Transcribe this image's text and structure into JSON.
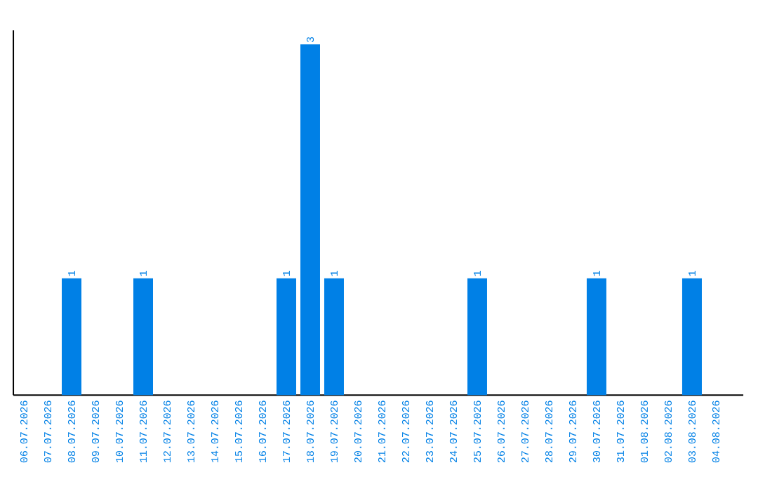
{
  "chart_data": {
    "type": "bar",
    "categories": [
      "06.07.2026",
      "07.07.2026",
      "08.07.2026",
      "09.07.2026",
      "10.07.2026",
      "11.07.2026",
      "12.07.2026",
      "13.07.2026",
      "14.07.2026",
      "15.07.2026",
      "16.07.2026",
      "17.07.2026",
      "18.07.2026",
      "19.07.2026",
      "20.07.2026",
      "21.07.2026",
      "22.07.2026",
      "23.07.2026",
      "24.07.2026",
      "25.07.2026",
      "26.07.2026",
      "27.07.2026",
      "28.07.2026",
      "29.07.2026",
      "30.07.2026",
      "31.07.2026",
      "01.08.2026",
      "02.08.2026",
      "03.08.2026",
      "04.08.2026"
    ],
    "values": [
      0,
      0,
      1,
      0,
      0,
      1,
      0,
      0,
      0,
      0,
      0,
      1,
      3,
      1,
      0,
      0,
      0,
      0,
      0,
      1,
      0,
      0,
      0,
      0,
      1,
      0,
      0,
      0,
      1,
      0
    ],
    "value_labels": [
      null,
      null,
      "1",
      null,
      null,
      "1",
      null,
      null,
      null,
      null,
      null,
      "1",
      "3",
      "1",
      null,
      null,
      null,
      null,
      null,
      "1",
      null,
      null,
      null,
      null,
      "1",
      null,
      null,
      null,
      "1",
      null
    ],
    "color": "#0080e6",
    "ylim": [
      0,
      3.12
    ],
    "tick_labels": "x",
    "grid": false
  }
}
